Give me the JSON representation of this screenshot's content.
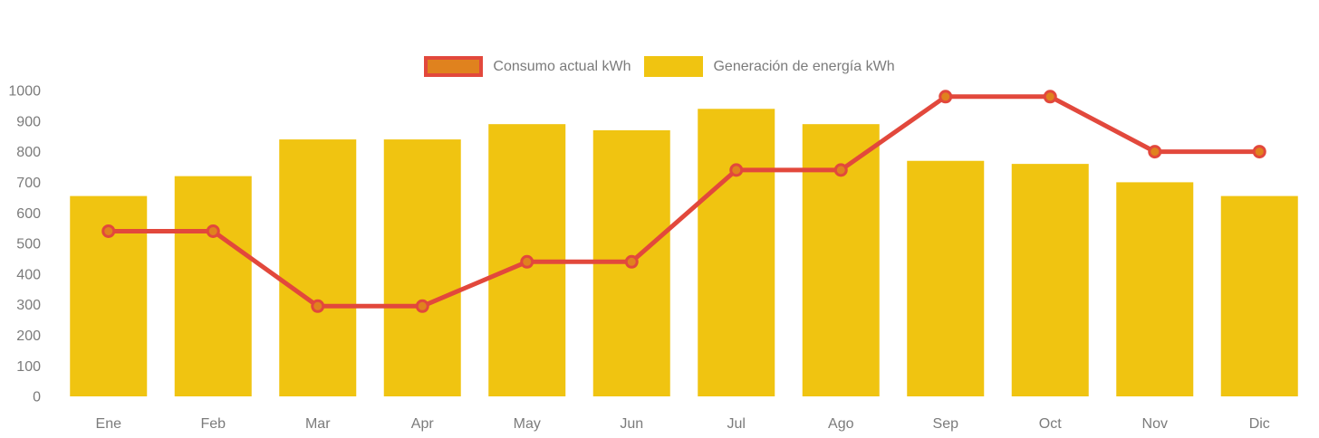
{
  "legend": {
    "items": [
      {
        "label": "Consumo actual kWh",
        "swatch_fill": "#e0821e",
        "swatch_border": "#e2483c",
        "bordered": true
      },
      {
        "label": "Generación de energía kWh",
        "swatch_fill": "#f0c411",
        "swatch_border": "#f0c411",
        "bordered": false
      }
    ]
  },
  "chart_data": {
    "type": "bar+line",
    "title": "",
    "xlabel": "",
    "ylabel": "",
    "categories": [
      "Ene",
      "Feb",
      "Mar",
      "Apr",
      "May",
      "Jun",
      "Jul",
      "Ago",
      "Sep",
      "Oct",
      "Nov",
      "Dic"
    ],
    "series": [
      {
        "name": "Generación de energía kWh",
        "type": "bar",
        "color": "#f0c411",
        "values": [
          655,
          720,
          840,
          840,
          890,
          870,
          940,
          890,
          770,
          760,
          700,
          655
        ]
      },
      {
        "name": "Consumo actual kWh",
        "type": "line",
        "color": "#e2483c",
        "point_fill": "#e0821e",
        "values": [
          540,
          540,
          295,
          295,
          440,
          440,
          740,
          740,
          980,
          980,
          800,
          800
        ]
      }
    ],
    "ylim": [
      0,
      1000
    ],
    "ytick_step": 100,
    "yticks": [
      0,
      100,
      200,
      300,
      400,
      500,
      600,
      700,
      800,
      900,
      1000
    ],
    "grid": false,
    "legend_position": "top",
    "axis_text_color": "#7b7b7b"
  }
}
